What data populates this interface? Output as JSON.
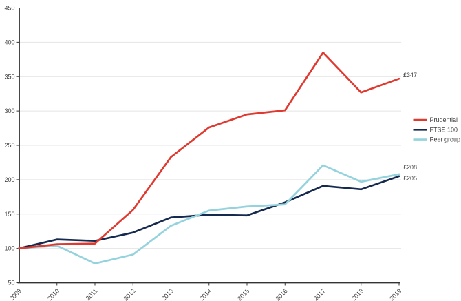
{
  "chart_data": {
    "type": "line",
    "title": "",
    "xlabel": "",
    "ylabel": "",
    "x_labels": [
      "2009",
      "2010",
      "2011",
      "2012",
      "2013",
      "2014",
      "2015",
      "2016",
      "2017",
      "2018",
      "2019"
    ],
    "ylim": [
      50,
      450
    ],
    "ytick_step": 50,
    "grid": true,
    "legend_position": "right",
    "series": [
      {
        "name": "Prudential",
        "color": "#e03a30",
        "values": [
          100,
          106,
          107,
          156,
          233,
          276,
          295,
          301,
          385,
          327,
          347
        ],
        "end_label": "£347",
        "end_label_dy": -5
      },
      {
        "name": "FTSE 100",
        "color": "#16294e",
        "values": [
          100,
          113,
          111,
          123,
          145,
          149,
          148,
          167,
          191,
          186,
          205
        ],
        "end_label": "£205",
        "end_label_dy": 3
      },
      {
        "name": "Peer group",
        "color": "#94d3dd",
        "values": [
          100,
          104,
          78,
          91,
          133,
          155,
          161,
          164,
          221,
          197,
          208
        ],
        "end_label": "£208",
        "end_label_dy": -10
      }
    ]
  },
  "styles": {
    "axis_color": "#333333",
    "grid_color": "#e4e4e4",
    "text_color": "#3d3d3d",
    "background": "#ffffff"
  }
}
